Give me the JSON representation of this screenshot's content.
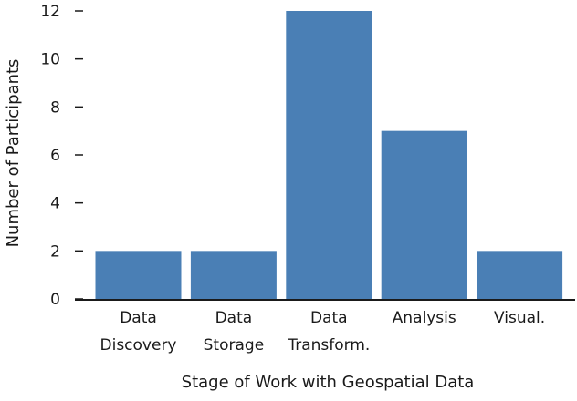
{
  "chart_data": {
    "type": "bar",
    "categories": [
      [
        "Data",
        "Discovery"
      ],
      [
        "Data",
        "Storage"
      ],
      [
        "Data",
        "Transform."
      ],
      [
        "Analysis"
      ],
      [
        "Visual."
      ]
    ],
    "values": [
      2,
      2,
      12,
      7,
      2
    ],
    "xlabel": "Stage of Work with Geospatial Data",
    "ylabel": "Number of Participants",
    "ylim": [
      0,
      12
    ],
    "yticks": [
      0,
      2,
      4,
      6,
      8,
      10,
      12
    ],
    "grid": false,
    "bar_color": "#4a7fb5"
  }
}
